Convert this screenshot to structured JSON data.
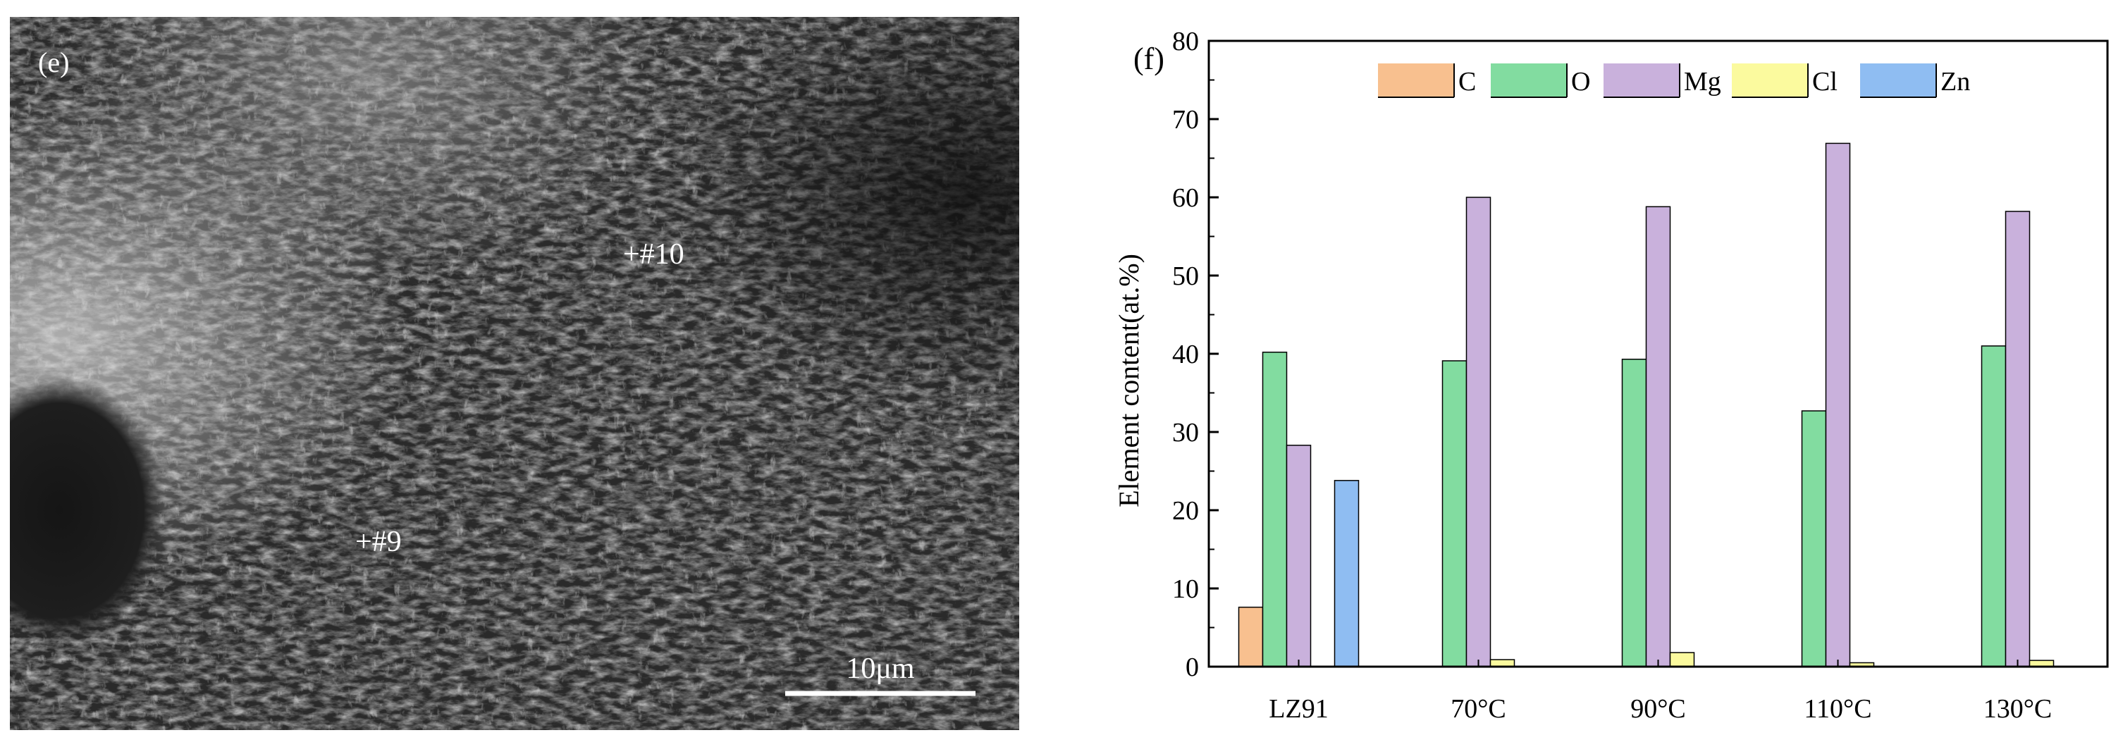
{
  "sem": {
    "panel_label": "(e)",
    "markers": [
      "+#10",
      "+#9"
    ],
    "scale_bar_label": "10μm"
  },
  "chart_data": {
    "type": "bar",
    "panel_label": "(f)",
    "categories": [
      "LZ91",
      "70°C",
      "90°C",
      "110°C",
      "130°C"
    ],
    "series": [
      {
        "name": "C",
        "color": "#f8c08f",
        "values": [
          7.6,
          0,
          0,
          0,
          0
        ]
      },
      {
        "name": "O",
        "color": "#82dca0",
        "values": [
          40.2,
          39.1,
          39.3,
          32.7,
          41.0
        ]
      },
      {
        "name": "Mg",
        "color": "#c9b1dc",
        "values": [
          28.3,
          60.0,
          58.8,
          66.9,
          58.2
        ]
      },
      {
        "name": "Cl",
        "color": "#fbfa9e",
        "values": [
          0,
          0.9,
          1.8,
          0.5,
          0.8
        ]
      },
      {
        "name": "Zn",
        "color": "#8fbdf2",
        "values": [
          23.8,
          0,
          0,
          0,
          0
        ]
      }
    ],
    "ylabel": "Element content(at.%)",
    "xlabel": "",
    "ylim": [
      0,
      80
    ],
    "yticks": [
      0,
      10,
      20,
      30,
      40,
      50,
      60,
      70,
      80
    ],
    "legend_position": "top",
    "grid": false
  }
}
